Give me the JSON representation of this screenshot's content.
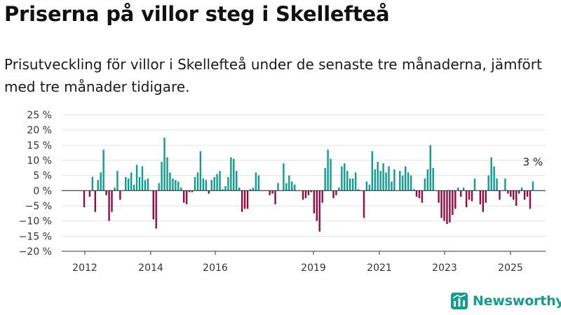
{
  "title": "Priserna på villor steg i Skellefteå",
  "subtitle": "Prisutveckling för villor i Skellefteå under de senaste tre månaderna, jämfört med tre månader tidigare.",
  "brand": {
    "name": "Newsworthy",
    "color": "#159c8d",
    "icon": "bar-chart-logo-icon"
  },
  "colors": {
    "positive": "#0d9e8f",
    "negative": "#970b41",
    "grid": "#e2e2e2",
    "zero": "#333333"
  },
  "chart_data": {
    "type": "bar",
    "y_ticks": [
      "25 %",
      "20 %",
      "15 %",
      "10 %",
      "5 %",
      "0 %",
      "−5 %",
      "−10 %",
      "−15 %",
      "−20 %"
    ],
    "x_ticks": [
      "2012",
      "2014",
      "2016",
      "2019",
      "2021",
      "2023",
      "2025"
    ],
    "ylim": [
      -20,
      25
    ],
    "grid": true,
    "unit": "%",
    "annotation": "3 %",
    "values": [
      -5.5,
      0,
      -2,
      4.5,
      -7,
      3.5,
      6,
      13.5,
      -1.5,
      -10,
      -7,
      1,
      6.5,
      -3,
      0,
      4.5,
      4,
      6,
      2,
      8.5,
      4.5,
      8,
      3.5,
      4,
      0,
      -9.5,
      -12.5,
      2.5,
      9.5,
      17.5,
      11,
      6,
      4,
      3.5,
      3,
      1,
      -4,
      -4.5,
      -0.5,
      -0.5,
      4.5,
      6,
      13,
      4,
      3.5,
      -1,
      3.5,
      4.5,
      5.5,
      6.5,
      0.5,
      1.5,
      4.5,
      11,
      10.5,
      6.5,
      1,
      -7,
      -6,
      -6,
      0.5,
      1,
      6,
      5,
      0,
      0,
      0,
      -1.5,
      -1,
      -4.5,
      2.5,
      0,
      9,
      2.5,
      5,
      3,
      2,
      0,
      0,
      -3,
      -2.5,
      -1.5,
      -0.5,
      -7.5,
      -10,
      -13.5,
      -4,
      7.5,
      13.5,
      10.5,
      -2.5,
      -1.5,
      1,
      8,
      9,
      6.5,
      4,
      4,
      6,
      0.5,
      0,
      -9,
      3,
      2,
      13,
      7,
      9.5,
      6.5,
      9,
      6,
      8,
      3,
      7,
      0,
      6.5,
      5,
      8,
      6,
      5,
      0.5,
      -2,
      -2.5,
      -4,
      4,
      7,
      15,
      7.5,
      0,
      -4,
      -9,
      -10,
      -11,
      -10.5,
      -8,
      -6,
      1,
      -2,
      1,
      -5.5,
      -3,
      -3.5,
      4,
      0,
      -4.5,
      -7,
      -4,
      5,
      11,
      8,
      4,
      -3,
      0,
      4,
      -1,
      -2,
      -3,
      -5,
      -1,
      1,
      -3,
      -2,
      -6,
      3
    ]
  }
}
